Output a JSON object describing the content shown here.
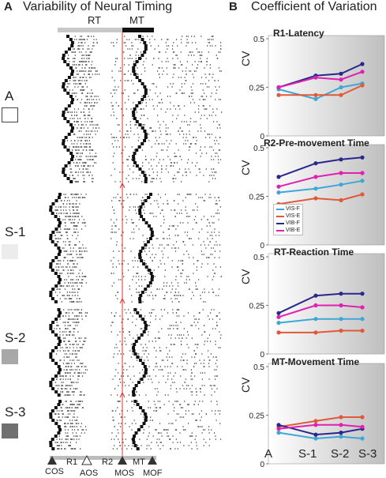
{
  "panel_a": {
    "letter": "A",
    "title": "Variability of Neural Timing",
    "top_bar": {
      "rt_label": "RT",
      "mt_label": "MT"
    },
    "conditions": [
      {
        "label": "A",
        "box_color": "#ffffff"
      },
      {
        "label": "S-1",
        "box_color": "#ececec"
      },
      {
        "label": "S-2",
        "box_color": "#a8a8a8"
      },
      {
        "label": "S-3",
        "box_color": "#707070"
      }
    ],
    "events": [
      {
        "label": "COS",
        "marker": "filled"
      },
      {
        "label": "AOS",
        "marker": "open"
      },
      {
        "label": "MOS",
        "marker": "filled"
      },
      {
        "label": "MOF",
        "marker": "filled"
      }
    ],
    "segments": [
      "R1",
      "R2",
      "MT"
    ]
  },
  "panel_b": {
    "letter": "B",
    "title": "Coefficient of Variation",
    "y_label": "CV",
    "x_ticks": [
      "A",
      "S-1",
      "S-2",
      "S-3"
    ],
    "legend": [
      "VIS-F",
      "VIS-E",
      "VIB-F",
      "VIB-E"
    ],
    "colors": {
      "VIS-F": "#3fa7d6",
      "VIS-E": "#e05a3a",
      "VIB-F": "#28288c",
      "VIB-E": "#e020b0"
    }
  },
  "chart_data": [
    {
      "type": "line",
      "title": "R1-Latency",
      "xlabel": "",
      "ylabel": "CV",
      "categories": [
        "A",
        "S-1",
        "S-2",
        "S-3"
      ],
      "ylim": [
        0,
        0.5
      ],
      "yticks": [
        "0.5",
        "0.25",
        "0"
      ],
      "series": [
        {
          "name": "VIS-F",
          "values": [
            0.24,
            0.19,
            0.25,
            0.27
          ]
        },
        {
          "name": "VIS-E",
          "values": [
            0.21,
            0.21,
            0.21,
            0.26
          ]
        },
        {
          "name": "VIB-F",
          "values": [
            0.25,
            0.31,
            0.32,
            0.37
          ]
        },
        {
          "name": "VIB-E",
          "values": [
            0.25,
            0.3,
            0.29,
            0.33
          ]
        }
      ]
    },
    {
      "type": "line",
      "title": "R2-Pre-movement Time",
      "xlabel": "",
      "ylabel": "CV",
      "categories": [
        "A",
        "S-1",
        "S-2",
        "S-3"
      ],
      "ylim": [
        0,
        0.5
      ],
      "yticks": [
        "0.5",
        "0.25",
        "0"
      ],
      "series": [
        {
          "name": "VIS-F",
          "values": [
            0.27,
            0.29,
            0.31,
            0.33
          ]
        },
        {
          "name": "VIS-E",
          "values": [
            0.21,
            0.24,
            0.23,
            0.26
          ]
        },
        {
          "name": "VIB-F",
          "values": [
            0.35,
            0.42,
            0.44,
            0.45
          ]
        },
        {
          "name": "VIB-E",
          "values": [
            0.3,
            0.35,
            0.37,
            0.37
          ]
        }
      ]
    },
    {
      "type": "line",
      "title": "RT-Reaction Time",
      "xlabel": "",
      "ylabel": "CV",
      "categories": [
        "A",
        "S-1",
        "S-2",
        "S-3"
      ],
      "ylim": [
        0,
        0.5
      ],
      "yticks": [
        "0.5",
        "0.25",
        "0"
      ],
      "series": [
        {
          "name": "VIS-F",
          "values": [
            0.16,
            0.18,
            0.18,
            0.18
          ]
        },
        {
          "name": "VIS-E",
          "values": [
            0.11,
            0.11,
            0.12,
            0.12
          ]
        },
        {
          "name": "VIB-F",
          "values": [
            0.21,
            0.3,
            0.31,
            0.31
          ]
        },
        {
          "name": "VIB-E",
          "values": [
            0.19,
            0.25,
            0.25,
            0.24
          ]
        }
      ]
    },
    {
      "type": "line",
      "title": "MT-Movement Time",
      "xlabel": "",
      "ylabel": "CV",
      "categories": [
        "A",
        "S-1",
        "S-2",
        "S-3"
      ],
      "ylim": [
        0,
        0.5
      ],
      "yticks": [
        "0.5",
        "0.25",
        "0"
      ],
      "series": [
        {
          "name": "VIS-F",
          "values": [
            0.16,
            0.13,
            0.14,
            0.13
          ]
        },
        {
          "name": "VIS-E",
          "values": [
            0.19,
            0.22,
            0.24,
            0.24
          ]
        },
        {
          "name": "VIB-F",
          "values": [
            0.2,
            0.15,
            0.16,
            0.18
          ]
        },
        {
          "name": "VIB-E",
          "values": [
            0.18,
            0.2,
            0.2,
            0.19
          ]
        }
      ]
    }
  ]
}
